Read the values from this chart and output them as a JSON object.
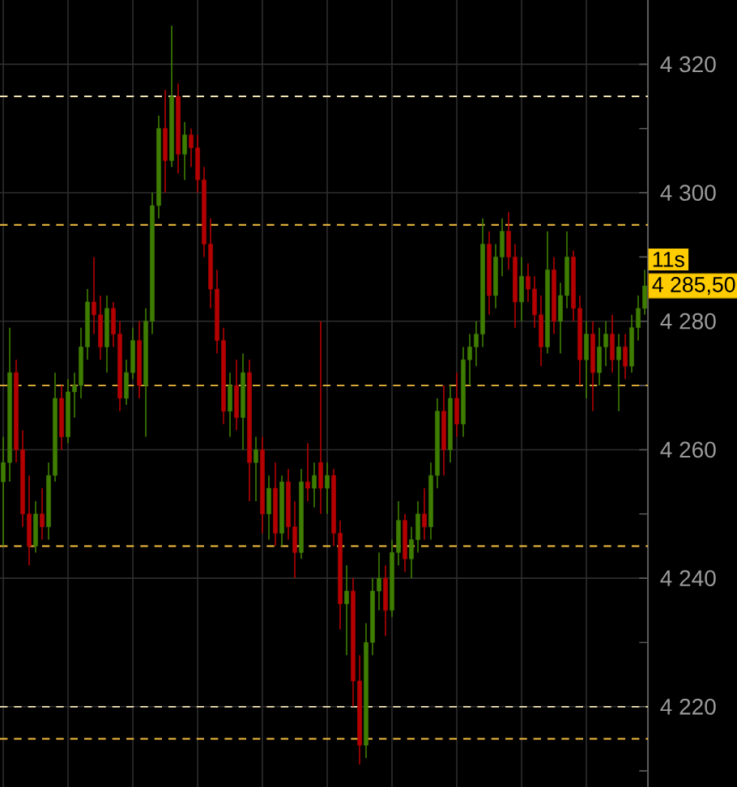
{
  "chart_data": {
    "type": "candlestick",
    "categories": [
      null,
      null,
      null,
      null,
      null,
      null,
      null,
      null,
      null,
      null,
      null,
      null,
      null,
      null,
      null,
      null,
      null,
      null,
      null,
      null,
      null,
      null,
      null,
      null,
      null,
      null,
      null,
      null,
      null,
      null,
      null,
      null,
      null,
      null,
      null,
      null,
      null,
      null,
      null,
      null,
      null,
      null,
      null,
      null,
      null,
      null,
      null,
      null,
      null,
      null,
      null,
      null,
      null,
      null,
      null,
      null,
      null,
      null,
      null,
      null,
      null,
      null,
      null,
      null,
      null,
      null,
      null,
      null,
      null,
      null,
      null,
      null,
      null,
      null,
      null,
      null,
      null,
      null,
      null,
      null,
      null,
      null,
      null,
      null,
      null,
      null,
      null,
      null,
      null,
      null,
      null,
      null,
      null,
      null,
      null,
      null,
      null,
      null,
      null,
      null
    ],
    "ohlc": [
      [
        4255,
        4262,
        4245,
        4258
      ],
      [
        4258,
        4279,
        4255,
        4272
      ],
      [
        4272,
        4274,
        4258,
        4260
      ],
      [
        4260,
        4263,
        4248,
        4250
      ],
      [
        4250,
        4256,
        4242,
        4245
      ],
      [
        4245,
        4252,
        4244,
        4250
      ],
      [
        4250,
        4254,
        4246,
        4248
      ],
      [
        4248,
        4258,
        4246,
        4256
      ],
      [
        4256,
        4272,
        4255,
        4268
      ],
      [
        4268,
        4270,
        4260,
        4262
      ],
      [
        4262,
        4271,
        4261,
        4269
      ],
      [
        4269,
        4272,
        4265,
        4270
      ],
      [
        4270,
        4279,
        4268,
        4276
      ],
      [
        4276,
        4285,
        4274,
        4283
      ],
      [
        4283,
        4290,
        4278,
        4281
      ],
      [
        4281,
        4284,
        4274,
        4276
      ],
      [
        4276,
        4284,
        4272,
        4282
      ],
      [
        4282,
        4283,
        4276,
        4278
      ],
      [
        4278,
        4280,
        4266,
        4268
      ],
      [
        4268,
        4274,
        4267,
        4272
      ],
      [
        4272,
        4279,
        4271,
        4277
      ],
      [
        4277,
        4280,
        4268,
        4270
      ],
      [
        4270,
        4282,
        4262,
        4280
      ],
      [
        4280,
        4300,
        4278,
        4298
      ],
      [
        4298,
        4312,
        4296,
        4310
      ],
      [
        4310,
        4316,
        4300,
        4305
      ],
      [
        4305,
        4326,
        4304,
        4315
      ],
      [
        4315,
        4317,
        4303,
        4306
      ],
      [
        4306,
        4311,
        4302,
        4309
      ],
      [
        4309,
        4310,
        4304,
        4307
      ],
      [
        4307,
        4309,
        4300,
        4302
      ],
      [
        4302,
        4304,
        4290,
        4292
      ],
      [
        4292,
        4296,
        4282,
        4285
      ],
      [
        4285,
        4288,
        4275,
        4277
      ],
      [
        4277,
        4279,
        4264,
        4266
      ],
      [
        4266,
        4272,
        4262,
        4270
      ],
      [
        4270,
        4274,
        4263,
        4265
      ],
      [
        4265,
        4275,
        4260,
        4272
      ],
      [
        4272,
        4274,
        4252,
        4258
      ],
      [
        4258,
        4262,
        4252,
        4260
      ],
      [
        4260,
        4262,
        4247,
        4250
      ],
      [
        4250,
        4256,
        4246,
        4254
      ],
      [
        4254,
        4258,
        4245,
        4247
      ],
      [
        4247,
        4256,
        4245,
        4255
      ],
      [
        4255,
        4257,
        4246,
        4248
      ],
      [
        4248,
        4252,
        4240,
        4244
      ],
      [
        4244,
        4257,
        4243,
        4255
      ],
      [
        4255,
        4261,
        4252,
        4254
      ],
      [
        4254,
        4258,
        4251,
        4256
      ],
      [
        4258,
        4280,
        4250,
        4254
      ],
      [
        4254,
        4258,
        4250,
        4256
      ],
      [
        4256,
        4257,
        4245,
        4247
      ],
      [
        4247,
        4249,
        4232,
        4236
      ],
      [
        4236,
        4242,
        4228,
        4238
      ],
      [
        4238,
        4240,
        4220,
        4224
      ],
      [
        4224,
        4228,
        4211,
        4214
      ],
      [
        4214,
        4233,
        4212,
        4230
      ],
      [
        4230,
        4240,
        4228,
        4238
      ],
      [
        4238,
        4244,
        4235,
        4240
      ],
      [
        4240,
        4242,
        4231,
        4235
      ],
      [
        4235,
        4246,
        4234,
        4244
      ],
      [
        4244,
        4252,
        4242,
        4249
      ],
      [
        4249,
        4250,
        4241,
        4243
      ],
      [
        4243,
        4248,
        4240,
        4246
      ],
      [
        4246,
        4252,
        4244,
        4250
      ],
      [
        4250,
        4254,
        4246,
        4248
      ],
      [
        4248,
        4258,
        4246,
        4256
      ],
      [
        4256,
        4268,
        4254,
        4266
      ],
      [
        4266,
        4270,
        4256,
        4260
      ],
      [
        4260,
        4270,
        4258,
        4268
      ],
      [
        4268,
        4272,
        4262,
        4264
      ],
      [
        4264,
        4276,
        4262,
        4274
      ],
      [
        4274,
        4278,
        4270,
        4276
      ],
      [
        4276,
        4280,
        4273,
        4278
      ],
      [
        4278,
        4296,
        4276,
        4292
      ],
      [
        4292,
        4294,
        4281,
        4284
      ],
      [
        4284,
        4292,
        4282,
        4290
      ],
      [
        4290,
        4296,
        4287,
        4294
      ],
      [
        4294,
        4297,
        4288,
        4290
      ],
      [
        4290,
        4292,
        4279,
        4283
      ],
      [
        4283,
        4290,
        4280,
        4287
      ],
      [
        4287,
        4289,
        4283,
        4285
      ],
      [
        4285,
        4287,
        4279,
        4281
      ],
      [
        4281,
        4284,
        4273,
        4276
      ],
      [
        4276,
        4294,
        4275,
        4288
      ],
      [
        4288,
        4290,
        4278,
        4280
      ],
      [
        4280,
        4286,
        4275,
        4284
      ],
      [
        4284,
        4294,
        4282,
        4290
      ],
      [
        4290,
        4291,
        4280,
        4282
      ],
      [
        4282,
        4284,
        4270,
        4274
      ],
      [
        4274,
        4280,
        4268,
        4278
      ],
      [
        4278,
        4280,
        4266,
        4272
      ],
      [
        4272,
        4279,
        4270,
        4276
      ],
      [
        4276,
        4280,
        4273,
        4278
      ],
      [
        4278,
        4281,
        4272,
        4274
      ],
      [
        4274,
        4278,
        4266,
        4276
      ],
      [
        4276,
        4278,
        4271,
        4273
      ],
      [
        4273,
        4281,
        4272,
        4279
      ],
      [
        4279,
        4284,
        4277,
        4282
      ],
      [
        4282,
        4288,
        4281,
        4285.5
      ]
    ],
    "colors": [
      "#3f7d00",
      "#3f7d00",
      "#b40000",
      "#b40000",
      "#b40000",
      "#3f7d00",
      "#b40000",
      "#3f7d00",
      "#3f7d00",
      "#b40000",
      "#3f7d00",
      "#3f7d00",
      "#3f7d00",
      "#3f7d00",
      "#b40000",
      "#b40000",
      "#3f7d00",
      "#b40000",
      "#b40000",
      "#3f7d00",
      "#3f7d00",
      "#b40000",
      "#3f7d00",
      "#3f7d00",
      "#3f7d00",
      "#b40000",
      "#3f7d00",
      "#b40000",
      "#3f7d00",
      "#b40000",
      "#b40000",
      "#b40000",
      "#b40000",
      "#b40000",
      "#b40000",
      "#3f7d00",
      "#b40000",
      "#3f7d00",
      "#b40000",
      "#3f7d00",
      "#b40000",
      "#3f7d00",
      "#b40000",
      "#3f7d00",
      "#b40000",
      "#b40000",
      "#3f7d00",
      "#b40000",
      "#3f7d00",
      "#b40000",
      "#3f7d00",
      "#b40000",
      "#b40000",
      "#3f7d00",
      "#b40000",
      "#b40000",
      "#3f7d00",
      "#3f7d00",
      "#3f7d00",
      "#b40000",
      "#3f7d00",
      "#3f7d00",
      "#b40000",
      "#3f7d00",
      "#3f7d00",
      "#b40000",
      "#3f7d00",
      "#3f7d00",
      "#b40000",
      "#3f7d00",
      "#b40000",
      "#3f7d00",
      "#3f7d00",
      "#3f7d00",
      "#3f7d00",
      "#b40000",
      "#3f7d00",
      "#3f7d00",
      "#b40000",
      "#b40000",
      "#3f7d00",
      "#b40000",
      "#b40000",
      "#b40000",
      "#3f7d00",
      "#b40000",
      "#3f7d00",
      "#3f7d00",
      "#b40000",
      "#b40000",
      "#3f7d00",
      "#b40000",
      "#3f7d00",
      "#3f7d00",
      "#b40000",
      "#3f7d00",
      "#b40000",
      "#3f7d00",
      "#3f7d00",
      "#3f7d00"
    ],
    "ylim": [
      4207.5,
      4330
    ],
    "yticks": [
      {
        "value": 4210,
        "label": null
      },
      {
        "value": 4220,
        "label": "4 220"
      },
      {
        "value": 4230,
        "label": null
      },
      {
        "value": 4240,
        "label": "4 240"
      },
      {
        "value": 4250,
        "label": null
      },
      {
        "value": 4260,
        "label": "4 260"
      },
      {
        "value": 4270,
        "label": null
      },
      {
        "value": 4280,
        "label": "4 280"
      },
      {
        "value": 4290,
        "label": null
      },
      {
        "value": 4300,
        "label": "4 300"
      },
      {
        "value": 4310,
        "label": null
      },
      {
        "value": 4320,
        "label": "4 320"
      }
    ],
    "grid": true,
    "tick_labels": "y",
    "ref_lines": [
      {
        "axis": "y",
        "value": 4315,
        "color": "#f3e6b8",
        "line_style": "dashed"
      },
      {
        "axis": "y",
        "value": 4295,
        "color": "#f5bf40",
        "line_style": "dashed"
      },
      {
        "axis": "y",
        "value": 4270,
        "color": "#f5bf40",
        "line_style": "dashed"
      },
      {
        "axis": "y",
        "value": 4245,
        "color": "#f5bf40",
        "line_style": "dashed"
      },
      {
        "axis": "y",
        "value": 4220,
        "color": "#f3e6b8",
        "line_style": "dashed"
      },
      {
        "axis": "y",
        "value": 4215,
        "color": "#f5bf40",
        "line_style": "dashed"
      }
    ],
    "annotations": [
      "4 285,50",
      "11s"
    ]
  }
}
